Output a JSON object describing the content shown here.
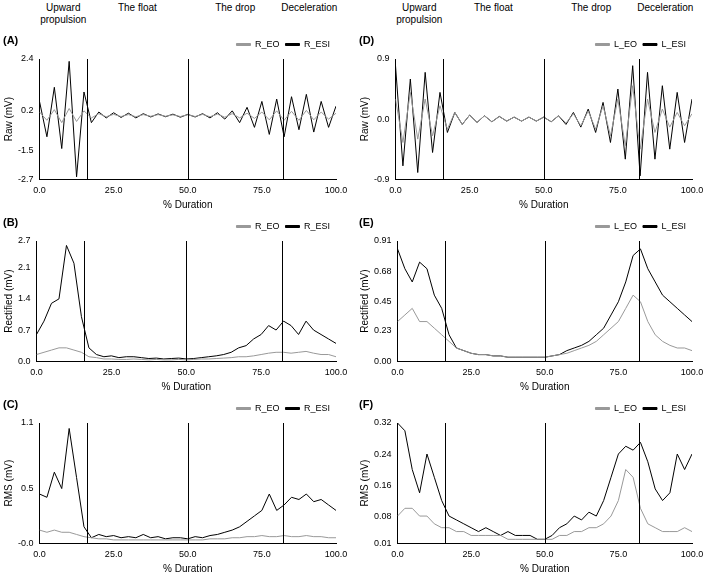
{
  "phases": {
    "labels": [
      "Upward propulsion",
      "The float",
      "The drop",
      "Deceleration"
    ],
    "boundaries": [
      16,
      50,
      82
    ]
  },
  "chart_data": [
    {
      "type": "line",
      "panel": "(A)",
      "y_label": "Raw (mV)",
      "x_label": "% Duration",
      "grid": false,
      "legend": "top-right",
      "x": [
        0,
        2.5,
        5,
        7.5,
        10,
        12.5,
        15,
        17.5,
        20,
        22.5,
        25,
        27.5,
        30,
        32.5,
        35,
        37.5,
        40,
        42.5,
        45,
        47.5,
        50,
        52.5,
        55,
        57.5,
        60,
        62.5,
        65,
        67.5,
        70,
        72.5,
        75,
        77.5,
        80,
        82.5,
        85,
        87.5,
        90,
        92.5,
        95,
        97.5,
        100
      ],
      "xlim": [
        0,
        100
      ],
      "xticks": [
        {
          "value": 0,
          "label": "0.0"
        },
        {
          "value": 25,
          "label": "25.0"
        },
        {
          "value": 50,
          "label": "50.0"
        },
        {
          "value": 75,
          "label": "75.0"
        },
        {
          "value": 100,
          "label": "100.0"
        }
      ],
      "ylim": [
        -2.7,
        2.4
      ],
      "yticks": [
        -2.7,
        -1.5,
        0.2,
        2.4
      ],
      "series": [
        {
          "name": "R_ESI",
          "color": "#000000",
          "values": [
            0.6,
            -0.9,
            1.2,
            -1.4,
            2.3,
            -2.6,
            1.0,
            -0.3,
            0.15,
            -0.1,
            0.12,
            -0.08,
            0.1,
            -0.1,
            0.08,
            -0.06,
            0.07,
            -0.05,
            0.06,
            -0.07,
            0.05,
            -0.06,
            0.08,
            -0.1,
            0.12,
            -0.15,
            0.2,
            -0.3,
            0.35,
            -0.5,
            0.6,
            -0.8,
            0.7,
            -0.9,
            0.8,
            -0.6,
            0.9,
            -0.7,
            0.6,
            -0.5,
            0.4
          ]
        },
        {
          "name": "R_EO",
          "color": "#999999",
          "values": [
            0.15,
            -0.2,
            0.25,
            -0.3,
            0.3,
            -0.25,
            0.2,
            -0.1,
            0.08,
            -0.05,
            0.05,
            -0.04,
            0.04,
            -0.05,
            0.04,
            -0.03,
            0.04,
            -0.03,
            0.03,
            -0.04,
            0.03,
            -0.04,
            0.05,
            -0.05,
            0.06,
            -0.07,
            0.08,
            -0.1,
            0.1,
            -0.12,
            0.15,
            -0.18,
            0.2,
            -0.2,
            0.18,
            -0.2,
            0.22,
            -0.18,
            0.15,
            -0.15,
            0.1
          ]
        }
      ]
    },
    {
      "type": "line",
      "panel": "(D)",
      "y_label": "Raw (mV)",
      "x_label": "% Duration",
      "grid": false,
      "legend": "top-right",
      "x": [
        0,
        2.5,
        5,
        7.5,
        10,
        12.5,
        15,
        17.5,
        20,
        22.5,
        25,
        27.5,
        30,
        32.5,
        35,
        37.5,
        40,
        42.5,
        45,
        47.5,
        50,
        52.5,
        55,
        57.5,
        60,
        62.5,
        65,
        67.5,
        70,
        72.5,
        75,
        77.5,
        80,
        82.5,
        85,
        87.5,
        90,
        92.5,
        95,
        97.5,
        100
      ],
      "xlim": [
        0,
        100
      ],
      "xticks": [
        {
          "value": 0,
          "label": "0.0"
        },
        {
          "value": 25,
          "label": "25.0"
        },
        {
          "value": 50,
          "label": "50.0"
        },
        {
          "value": 75,
          "label": "75.0"
        },
        {
          "value": 100,
          "label": "100.0"
        }
      ],
      "ylim": [
        -0.9,
        0.9
      ],
      "yticks": [
        -0.9,
        {
          "value": 0,
          "label": "0.0"
        },
        0.9
      ],
      "series": [
        {
          "name": "L_ESI",
          "color": "#000000",
          "values": [
            0.8,
            -0.7,
            0.6,
            -0.8,
            0.7,
            -0.5,
            0.4,
            -0.2,
            0.1,
            -0.08,
            0.06,
            -0.05,
            0.05,
            -0.04,
            0.04,
            -0.03,
            0.03,
            -0.03,
            0.03,
            -0.03,
            0.03,
            -0.04,
            0.05,
            -0.08,
            0.1,
            -0.12,
            0.15,
            -0.2,
            0.25,
            -0.35,
            0.45,
            -0.6,
            0.8,
            -0.85,
            0.7,
            -0.6,
            0.5,
            -0.45,
            0.4,
            -0.35,
            0.3
          ]
        },
        {
          "name": "L_EO",
          "color": "#999999",
          "values": [
            0.3,
            -0.35,
            0.4,
            -0.3,
            0.3,
            -0.25,
            0.2,
            -0.15,
            0.1,
            -0.08,
            0.06,
            -0.05,
            0.05,
            -0.04,
            0.04,
            -0.03,
            0.03,
            -0.03,
            0.03,
            -0.03,
            0.03,
            -0.04,
            0.05,
            -0.06,
            0.08,
            -0.1,
            0.12,
            -0.15,
            0.2,
            -0.25,
            0.3,
            -0.4,
            0.5,
            -0.45,
            0.3,
            -0.2,
            0.15,
            -0.12,
            0.1,
            -0.1,
            0.08
          ]
        }
      ]
    },
    {
      "type": "line",
      "panel": "(B)",
      "y_label": "Rectified (mV)",
      "x_label": "% Duration",
      "grid": false,
      "legend": "top-right",
      "x": [
        0,
        2.5,
        5,
        7.5,
        10,
        12.5,
        15,
        17.5,
        20,
        22.5,
        25,
        27.5,
        30,
        32.5,
        35,
        37.5,
        40,
        42.5,
        45,
        47.5,
        50,
        52.5,
        55,
        57.5,
        60,
        62.5,
        65,
        67.5,
        70,
        72.5,
        75,
        77.5,
        80,
        82.5,
        85,
        87.5,
        90,
        92.5,
        95,
        97.5,
        100
      ],
      "xlim": [
        0,
        100
      ],
      "xticks": [
        {
          "value": 0,
          "label": "0.0"
        },
        {
          "value": 25,
          "label": "25.0"
        },
        {
          "value": 50,
          "label": "50.0"
        },
        {
          "value": 75,
          "label": "75.0"
        },
        {
          "value": 100,
          "label": "100.0"
        }
      ],
      "ylim": [
        0,
        2.7
      ],
      "yticks": [
        {
          "value": 0,
          "label": "0.0"
        },
        0.7,
        1.4,
        2.1,
        2.7
      ],
      "series": [
        {
          "name": "R_ESI",
          "color": "#000000",
          "values": [
            0.6,
            0.9,
            1.3,
            1.4,
            2.6,
            2.2,
            1.0,
            0.3,
            0.15,
            0.1,
            0.12,
            0.08,
            0.1,
            0.1,
            0.08,
            0.06,
            0.07,
            0.05,
            0.06,
            0.07,
            0.05,
            0.06,
            0.08,
            0.1,
            0.12,
            0.15,
            0.2,
            0.3,
            0.35,
            0.5,
            0.6,
            0.8,
            0.7,
            0.9,
            0.8,
            0.6,
            0.9,
            0.7,
            0.6,
            0.5,
            0.4
          ]
        },
        {
          "name": "R_EO",
          "color": "#999999",
          "values": [
            0.15,
            0.2,
            0.25,
            0.3,
            0.3,
            0.25,
            0.2,
            0.1,
            0.08,
            0.05,
            0.05,
            0.04,
            0.04,
            0.05,
            0.04,
            0.03,
            0.04,
            0.03,
            0.03,
            0.04,
            0.03,
            0.04,
            0.05,
            0.05,
            0.06,
            0.07,
            0.08,
            0.1,
            0.1,
            0.12,
            0.15,
            0.18,
            0.2,
            0.2,
            0.18,
            0.2,
            0.22,
            0.18,
            0.15,
            0.15,
            0.1
          ]
        }
      ]
    },
    {
      "type": "line",
      "panel": "(E)",
      "y_label": "Rectified (mV)",
      "x_label": "% Duration",
      "grid": false,
      "legend": "top-right",
      "x": [
        0,
        2.5,
        5,
        7.5,
        10,
        12.5,
        15,
        17.5,
        20,
        22.5,
        25,
        27.5,
        30,
        32.5,
        35,
        37.5,
        40,
        42.5,
        45,
        47.5,
        50,
        52.5,
        55,
        57.5,
        60,
        62.5,
        65,
        67.5,
        70,
        72.5,
        75,
        77.5,
        80,
        82.5,
        85,
        87.5,
        90,
        92.5,
        95,
        97.5,
        100
      ],
      "xlim": [
        0,
        100
      ],
      "xticks": [
        {
          "value": 0,
          "label": "0.0"
        },
        {
          "value": 25,
          "label": "25.0"
        },
        {
          "value": 50,
          "label": "50.0"
        },
        {
          "value": 75,
          "label": "75.0"
        },
        {
          "value": 100,
          "label": "100.0"
        }
      ],
      "ylim": [
        0,
        0.91
      ],
      "yticks": [
        {
          "value": 0,
          "label": "0.00"
        },
        0.23,
        0.45,
        0.68,
        0.91
      ],
      "series": [
        {
          "name": "L_ESI",
          "color": "#000000",
          "values": [
            0.85,
            0.7,
            0.6,
            0.75,
            0.7,
            0.5,
            0.4,
            0.2,
            0.1,
            0.08,
            0.06,
            0.05,
            0.05,
            0.04,
            0.04,
            0.03,
            0.03,
            0.03,
            0.03,
            0.03,
            0.03,
            0.04,
            0.05,
            0.08,
            0.1,
            0.12,
            0.15,
            0.2,
            0.25,
            0.35,
            0.45,
            0.6,
            0.8,
            0.85,
            0.7,
            0.6,
            0.5,
            0.45,
            0.4,
            0.35,
            0.3
          ]
        },
        {
          "name": "L_EO",
          "color": "#999999",
          "values": [
            0.3,
            0.35,
            0.4,
            0.3,
            0.3,
            0.25,
            0.2,
            0.15,
            0.1,
            0.08,
            0.06,
            0.05,
            0.05,
            0.04,
            0.04,
            0.03,
            0.03,
            0.03,
            0.03,
            0.03,
            0.03,
            0.04,
            0.05,
            0.06,
            0.08,
            0.1,
            0.12,
            0.15,
            0.2,
            0.25,
            0.3,
            0.4,
            0.5,
            0.45,
            0.3,
            0.2,
            0.15,
            0.12,
            0.1,
            0.1,
            0.08
          ]
        }
      ]
    },
    {
      "type": "line",
      "panel": "(C)",
      "y_label": "RMS (mV)",
      "x_label": "% Duration",
      "grid": false,
      "legend": "top-right",
      "x": [
        0,
        2.5,
        5,
        7.5,
        10,
        12.5,
        15,
        17.5,
        20,
        22.5,
        25,
        27.5,
        30,
        32.5,
        35,
        37.5,
        40,
        42.5,
        45,
        47.5,
        50,
        52.5,
        55,
        57.5,
        60,
        62.5,
        65,
        67.5,
        70,
        72.5,
        75,
        77.5,
        80,
        82.5,
        85,
        87.5,
        90,
        92.5,
        95,
        97.5,
        100
      ],
      "xlim": [
        0,
        100
      ],
      "xticks": [
        {
          "value": 0,
          "label": "0.0"
        },
        {
          "value": 25,
          "label": "25.0"
        },
        {
          "value": 50,
          "label": "50.0"
        },
        {
          "value": 75,
          "label": "75.0"
        },
        {
          "value": 100,
          "label": "100.0"
        }
      ],
      "ylim": [
        0,
        1.1
      ],
      "yticks": [
        {
          "value": 0,
          "label": "-0.0"
        },
        0.5,
        1.1
      ],
      "series": [
        {
          "name": "R_ESI",
          "color": "#000000",
          "values": [
            0.45,
            0.42,
            0.65,
            0.5,
            1.05,
            0.6,
            0.15,
            0.05,
            0.08,
            0.06,
            0.07,
            0.05,
            0.06,
            0.05,
            0.08,
            0.05,
            0.06,
            0.04,
            0.05,
            0.05,
            0.04,
            0.06,
            0.05,
            0.07,
            0.08,
            0.1,
            0.12,
            0.15,
            0.2,
            0.25,
            0.3,
            0.45,
            0.3,
            0.35,
            0.42,
            0.4,
            0.45,
            0.38,
            0.4,
            0.35,
            0.3
          ]
        },
        {
          "name": "R_EO",
          "color": "#999999",
          "values": [
            0.12,
            0.1,
            0.12,
            0.1,
            0.1,
            0.08,
            0.06,
            0.05,
            0.04,
            0.04,
            0.03,
            0.03,
            0.03,
            0.03,
            0.03,
            0.03,
            0.03,
            0.03,
            0.03,
            0.03,
            0.03,
            0.03,
            0.03,
            0.04,
            0.04,
            0.04,
            0.05,
            0.05,
            0.06,
            0.06,
            0.07,
            0.06,
            0.06,
            0.07,
            0.06,
            0.06,
            0.07,
            0.06,
            0.06,
            0.05,
            0.05
          ]
        }
      ]
    },
    {
      "type": "line",
      "panel": "(F)",
      "y_label": "RMS (mV)",
      "x_label": "% Duration",
      "grid": false,
      "legend": "top-right",
      "x": [
        0,
        2.5,
        5,
        7.5,
        10,
        12.5,
        15,
        17.5,
        20,
        22.5,
        25,
        27.5,
        30,
        32.5,
        35,
        37.5,
        40,
        42.5,
        45,
        47.5,
        50,
        52.5,
        55,
        57.5,
        60,
        62.5,
        65,
        67.5,
        70,
        72.5,
        75,
        77.5,
        80,
        82.5,
        85,
        87.5,
        90,
        92.5,
        95,
        97.5,
        100
      ],
      "xlim": [
        0,
        100
      ],
      "xticks": [
        {
          "value": 0,
          "label": "0.0"
        },
        {
          "value": 25,
          "label": "25.0"
        },
        {
          "value": 50,
          "label": "50.0"
        },
        {
          "value": 75,
          "label": "75.0"
        },
        {
          "value": 100,
          "label": "100.0"
        }
      ],
      "ylim": [
        0.01,
        0.32
      ],
      "yticks": [
        0.01,
        0.08,
        0.16,
        0.24,
        0.32
      ],
      "series": [
        {
          "name": "L_ESI",
          "color": "#000000",
          "values": [
            0.32,
            0.3,
            0.2,
            0.14,
            0.24,
            0.18,
            0.12,
            0.08,
            0.07,
            0.06,
            0.05,
            0.04,
            0.05,
            0.04,
            0.03,
            0.04,
            0.03,
            0.03,
            0.03,
            0.02,
            0.02,
            0.03,
            0.05,
            0.06,
            0.08,
            0.07,
            0.09,
            0.08,
            0.12,
            0.18,
            0.24,
            0.26,
            0.25,
            0.27,
            0.22,
            0.15,
            0.12,
            0.14,
            0.24,
            0.2,
            0.24
          ]
        },
        {
          "name": "L_EO",
          "color": "#999999",
          "values": [
            0.08,
            0.1,
            0.1,
            0.08,
            0.08,
            0.06,
            0.05,
            0.05,
            0.04,
            0.04,
            0.03,
            0.03,
            0.03,
            0.03,
            0.03,
            0.02,
            0.02,
            0.02,
            0.02,
            0.02,
            0.02,
            0.02,
            0.03,
            0.03,
            0.04,
            0.04,
            0.05,
            0.05,
            0.06,
            0.08,
            0.12,
            0.2,
            0.18,
            0.1,
            0.06,
            0.05,
            0.04,
            0.04,
            0.04,
            0.05,
            0.04
          ]
        }
      ]
    }
  ]
}
